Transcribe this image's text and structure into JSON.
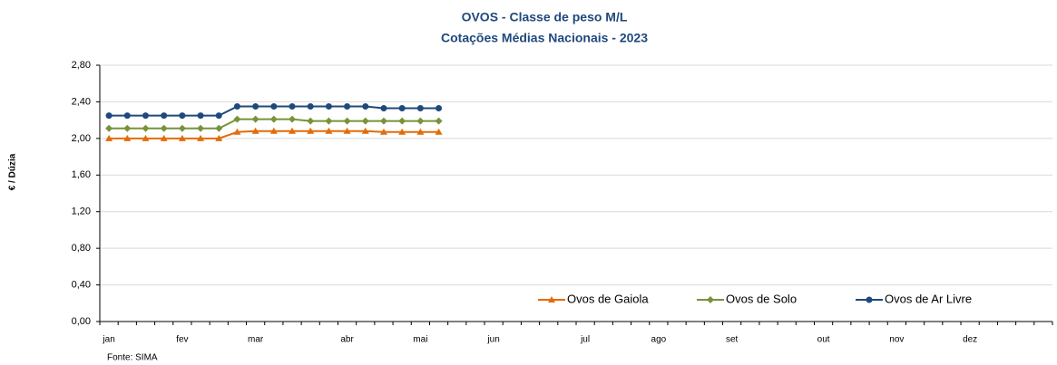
{
  "chart_data": {
    "type": "line",
    "title": "OVOS - Classe de peso M/L",
    "subtitle": "Cotações Médias Nacionais - 2023",
    "y_label": "€ / Dúzia",
    "source": "Fonte: SIMA",
    "categories": [
      "jan",
      null,
      null,
      null,
      "fev",
      null,
      null,
      null,
      "mar",
      null,
      null,
      null,
      null,
      "abr",
      null,
      null,
      null,
      "mai",
      null,
      null,
      null,
      "jun",
      null,
      null,
      null,
      null,
      "jul",
      null,
      null,
      null,
      "ago",
      null,
      null,
      null,
      "set",
      null,
      null,
      null,
      null,
      "out",
      null,
      null,
      null,
      "nov",
      null,
      null,
      null,
      "dez",
      null,
      null,
      null,
      null
    ],
    "series": [
      {
        "name": "Ovos de Gaiola",
        "color": "#e36c0a",
        "marker": "triangle",
        "values": [
          2.0,
          2.0,
          2.0,
          2.0,
          2.0,
          2.0,
          2.0,
          2.07,
          2.08,
          2.08,
          2.08,
          2.08,
          2.08,
          2.08,
          2.08,
          2.07,
          2.07,
          2.07,
          2.07,
          null,
          null,
          null,
          null,
          null,
          null,
          null,
          null,
          null,
          null,
          null,
          null,
          null,
          null,
          null,
          null,
          null,
          null,
          null,
          null,
          null,
          null,
          null,
          null,
          null,
          null,
          null,
          null,
          null,
          null,
          null,
          null,
          null
        ]
      },
      {
        "name": "Ovos de Solo",
        "color": "#77933c",
        "marker": "diamond",
        "values": [
          2.11,
          2.11,
          2.11,
          2.11,
          2.11,
          2.11,
          2.11,
          2.21,
          2.21,
          2.21,
          2.21,
          2.19,
          2.19,
          2.19,
          2.19,
          2.19,
          2.19,
          2.19,
          2.19,
          null,
          null,
          null,
          null,
          null,
          null,
          null,
          null,
          null,
          null,
          null,
          null,
          null,
          null,
          null,
          null,
          null,
          null,
          null,
          null,
          null,
          null,
          null,
          null,
          null,
          null,
          null,
          null,
          null,
          null,
          null,
          null,
          null
        ]
      },
      {
        "name": "Ovos de Ar Livre",
        "color": "#1f497d",
        "marker": "circle",
        "values": [
          2.25,
          2.25,
          2.25,
          2.25,
          2.25,
          2.25,
          2.25,
          2.35,
          2.35,
          2.35,
          2.35,
          2.35,
          2.35,
          2.35,
          2.35,
          2.33,
          2.33,
          2.33,
          2.33,
          null,
          null,
          null,
          null,
          null,
          null,
          null,
          null,
          null,
          null,
          null,
          null,
          null,
          null,
          null,
          null,
          null,
          null,
          null,
          null,
          null,
          null,
          null,
          null,
          null,
          null,
          null,
          null,
          null,
          null,
          null,
          null,
          null
        ]
      }
    ],
    "ylim": [
      0,
      2.8
    ],
    "yticks": [
      {
        "value": 0,
        "label": "0,00"
      },
      {
        "value": 0.4,
        "label": "0,40"
      },
      {
        "value": 0.8,
        "label": "0,80"
      },
      {
        "value": 1.2,
        "label": "1,20"
      },
      {
        "value": 1.6,
        "label": "1,60"
      },
      {
        "value": 2.0,
        "label": "2,00"
      },
      {
        "value": 2.4,
        "label": "2,40"
      },
      {
        "value": 2.8,
        "label": "2,80"
      }
    ],
    "grid": true,
    "legend": "lower right"
  }
}
